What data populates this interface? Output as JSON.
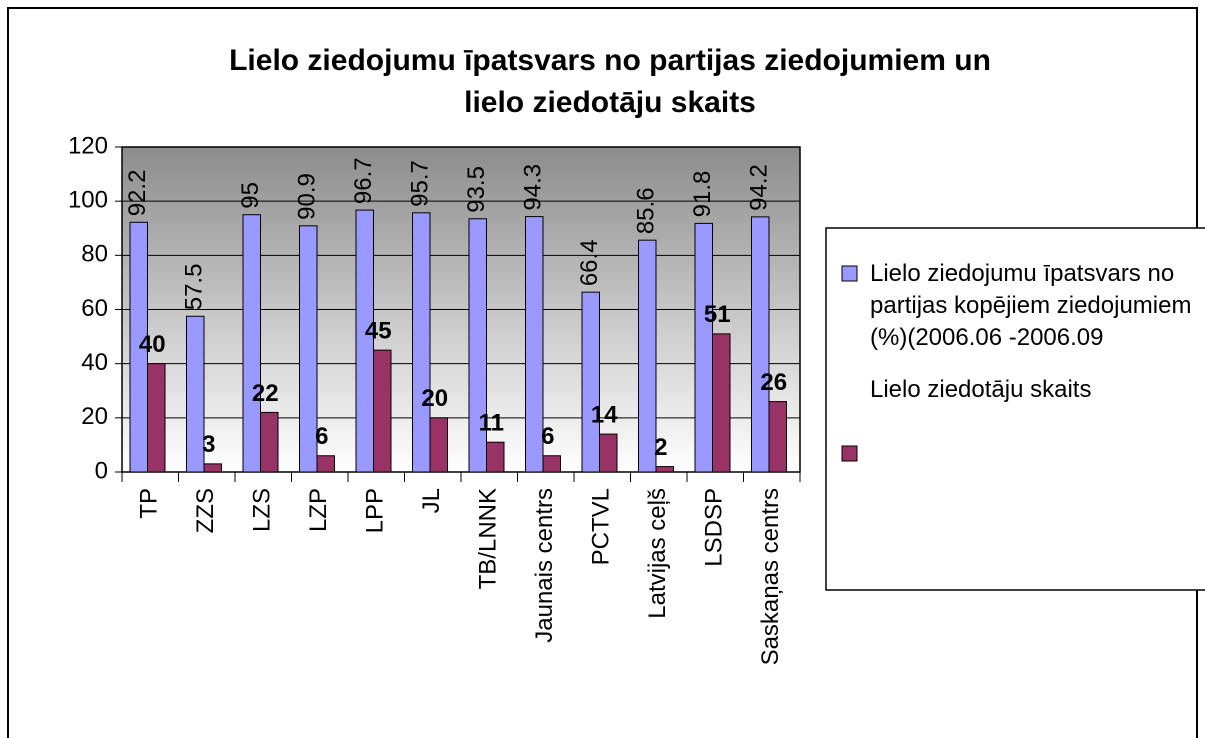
{
  "chart_data": {
    "type": "bar",
    "title": [
      "Lielo ziedojumu īpatsvars no partijas ziedojumiem un",
      "lielo ziedotāju skaits"
    ],
    "categories": [
      "TP",
      "ZZS",
      "LZS",
      "LZP",
      "LPP",
      "JL",
      "TB/LNNK",
      "Jaunais centrs",
      "PCTVL",
      "Latvijas ceļš",
      "LSDSP",
      "Saskaņas centrs"
    ],
    "series": [
      {
        "name": "Lielo ziedojumu īpatsvars no partijas kopējiem ziedojumiem (%)(2006.06 -2006.09",
        "color": "#9999ff",
        "values": [
          92.2,
          57.5,
          95,
          90.9,
          96.7,
          95.7,
          93.5,
          94.3,
          66.4,
          85.6,
          91.8,
          94.2
        ]
      },
      {
        "name": "Lielo ziedotāju skaits",
        "color": "#993366",
        "values": [
          40,
          3,
          22,
          6,
          45,
          20,
          11,
          6,
          14,
          2,
          51,
          26
        ]
      }
    ],
    "ylim": [
      0,
      120
    ],
    "yticks": [
      0,
      20,
      40,
      60,
      80,
      100,
      120
    ],
    "grid": true,
    "legend": "right"
  }
}
